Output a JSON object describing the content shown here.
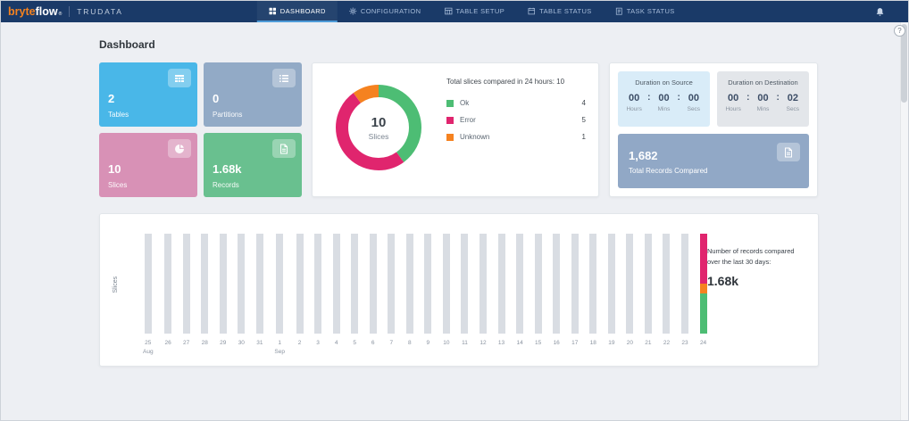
{
  "navbar": {
    "logo_bryte": "bryte",
    "logo_flow": "flow",
    "logo_reg": "®",
    "product": "TRUDATA",
    "items": [
      {
        "label": "DASHBOARD",
        "icon": "dashboard-icon",
        "active": true
      },
      {
        "label": "CONFIGURATION",
        "icon": "gear-icon",
        "active": false
      },
      {
        "label": "TABLE SETUP",
        "icon": "table-icon",
        "active": false
      },
      {
        "label": "TABLE STATUS",
        "icon": "table-status-icon",
        "active": false
      },
      {
        "label": "TASK STATUS",
        "icon": "task-status-icon",
        "active": false
      }
    ]
  },
  "help": {
    "label": "?"
  },
  "page_title": "Dashboard",
  "time_separator": ":",
  "stat_tiles": [
    {
      "value": "2",
      "label": "Tables",
      "color": "#49b7e8",
      "icon": "table-grid-icon"
    },
    {
      "value": "0",
      "label": "Partitions",
      "color": "#92aac6",
      "icon": "list-icon"
    },
    {
      "value": "10",
      "label": "Slices",
      "color": "#d891b6",
      "icon": "pie-icon"
    },
    {
      "value": "1.68k",
      "label": "Records",
      "color": "#69c08f",
      "icon": "file-icon"
    }
  ],
  "donut": {
    "title": "Total slices compared in 24 hours: 10",
    "center_value": "10",
    "center_label": "Slices",
    "segments": [
      {
        "label": "Ok",
        "value": 4,
        "color": "#4dbd74"
      },
      {
        "label": "Error",
        "value": 5,
        "color": "#e0256e"
      },
      {
        "label": "Unknown",
        "value": 1,
        "color": "#f58220"
      }
    ]
  },
  "durations": [
    {
      "title": "Duration on Source",
      "values": [
        "00",
        "00",
        "00"
      ],
      "units": [
        "Hours",
        "Mins",
        "Secs"
      ],
      "bg": "#d9ecf8"
    },
    {
      "title": "Duration on Destination",
      "values": [
        "00",
        "00",
        "02"
      ],
      "units": [
        "Hours",
        "Mins",
        "Secs"
      ],
      "bg": "#e3e6ea"
    }
  ],
  "records_compared": {
    "value": "1,682",
    "label": "Total Records Compared",
    "icon": "file-icon",
    "color": "#91a8c6"
  },
  "chart_data": {
    "type": "stacked-bar",
    "ylabel": "Slices",
    "x": [
      "25",
      "26",
      "27",
      "28",
      "29",
      "30",
      "31",
      "1",
      "2",
      "3",
      "4",
      "5",
      "6",
      "7",
      "8",
      "9",
      "10",
      "11",
      "12",
      "13",
      "14",
      "15",
      "16",
      "17",
      "18",
      "19",
      "20",
      "21",
      "22",
      "23",
      "24"
    ],
    "month_labels": [
      {
        "index": 0,
        "label": "Aug"
      },
      {
        "index": 7,
        "label": "Sep"
      }
    ],
    "values": [
      10,
      10,
      10,
      10,
      10,
      10,
      10,
      10,
      10,
      10,
      10,
      10,
      10,
      10,
      10,
      10,
      10,
      10,
      10,
      10,
      10,
      10,
      10,
      10,
      10,
      10,
      10,
      10,
      10,
      10,
      10
    ],
    "ymax": 10,
    "bar_color": "#d9dde3",
    "last_bar_stack": [
      {
        "name": "Ok",
        "value": 4,
        "color": "#4dbd74"
      },
      {
        "name": "Unknown",
        "value": 1,
        "color": "#f58220"
      },
      {
        "name": "Error",
        "value": 5,
        "color": "#e0256e"
      }
    ],
    "annotation_text": "Number of records compared over the last 30 days:",
    "annotation_value": "1.68k"
  }
}
